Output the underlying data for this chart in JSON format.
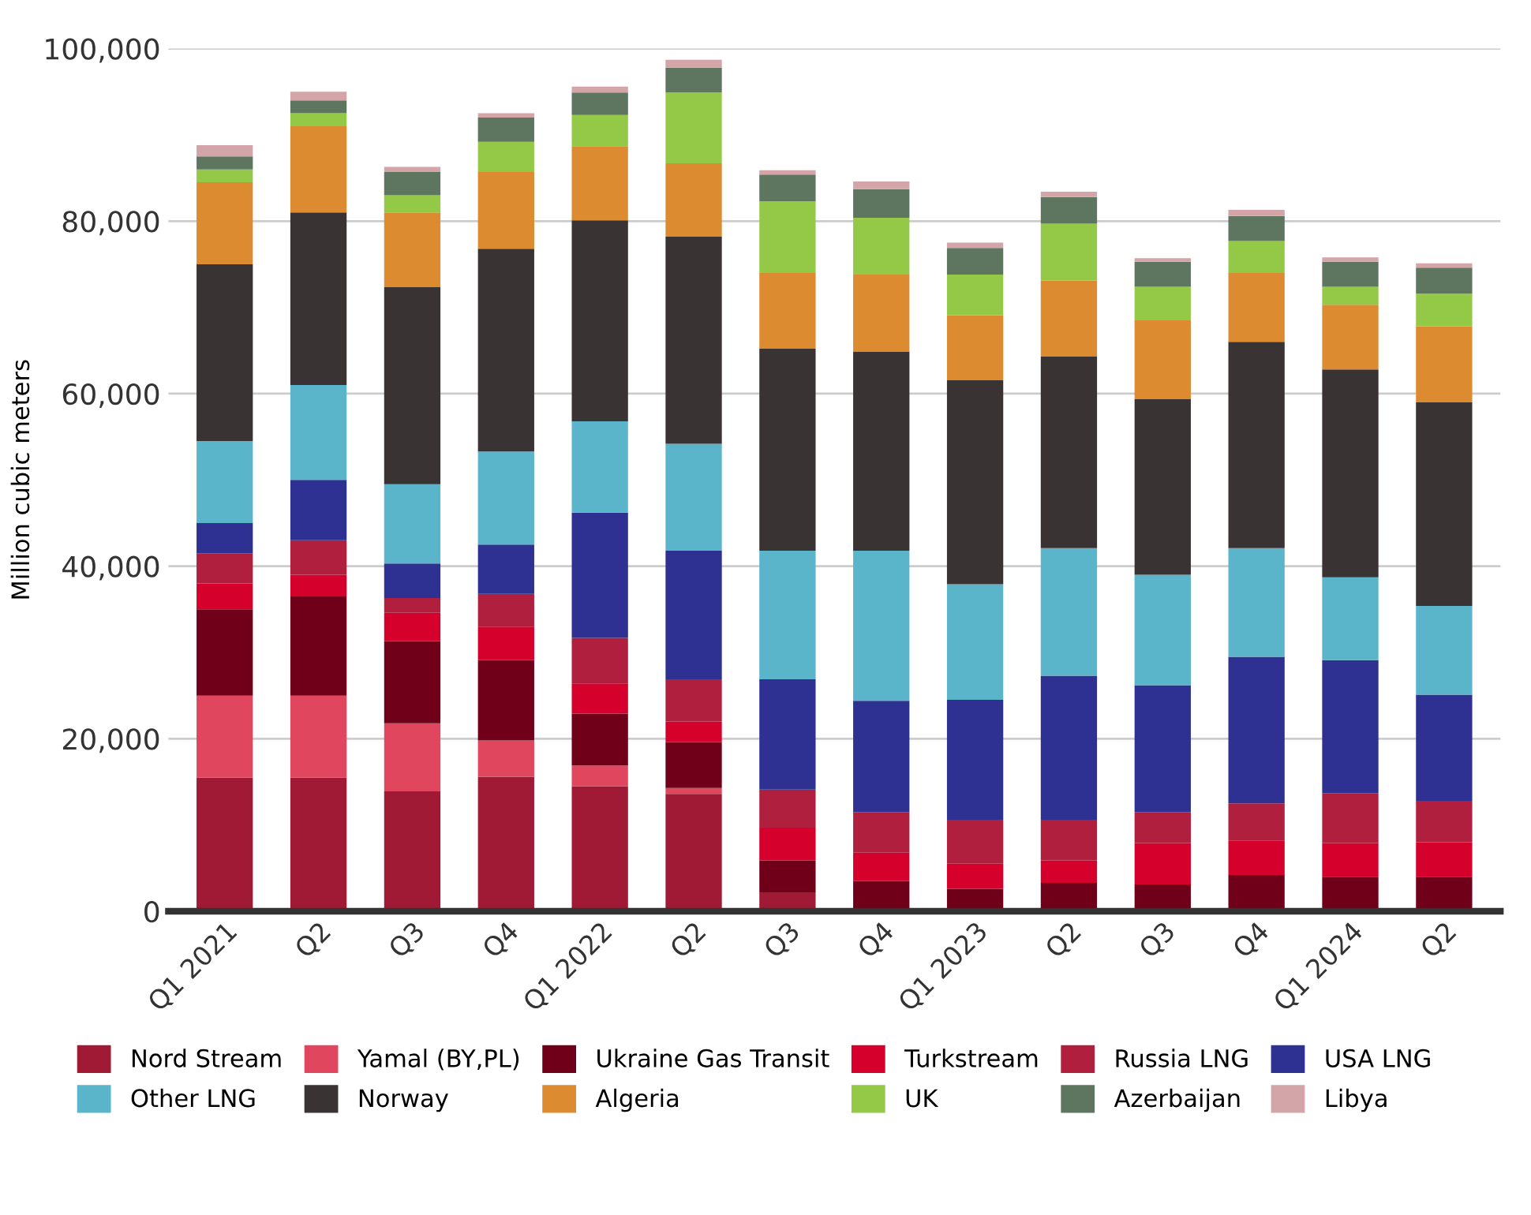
{
  "chart_data": {
    "type": "bar",
    "stacked": true,
    "ylabel": "Million cubic meters",
    "categories": [
      "Q1 2021",
      "Q2",
      "Q3",
      "Q4",
      "Q1 2022",
      "Q2",
      "Q3",
      "Q4",
      "Q1 2023",
      "Q2",
      "Q3",
      "Q4",
      "Q1 2024",
      "Q2"
    ],
    "ylim": [
      0,
      100000
    ],
    "yticks": [
      {
        "value": 0,
        "label": "0"
      },
      {
        "value": 20000,
        "label": "20,000"
      },
      {
        "value": 40000,
        "label": "40,000"
      },
      {
        "value": 60000,
        "label": "60,000"
      },
      {
        "value": 80000,
        "label": "80,000"
      },
      {
        "value": 100000,
        "label": "100,000"
      }
    ],
    "grid": "y",
    "legend": "bottom",
    "series": [
      {
        "name": "Nord Stream",
        "color": "#a01a35",
        "values": [
          15500,
          15500,
          13900,
          15600,
          14500,
          13600,
          2200,
          0,
          0,
          0,
          0,
          0,
          0,
          0
        ]
      },
      {
        "name": "Yamal (BY,PL)",
        "color": "#e0475f",
        "values": [
          9500,
          9500,
          7900,
          4200,
          2400,
          700,
          0,
          0,
          0,
          0,
          0,
          0,
          0,
          0
        ]
      },
      {
        "name": "Ukraine Gas Transit",
        "color": "#70001a",
        "values": [
          10000,
          11500,
          9500,
          9300,
          6000,
          5300,
          3700,
          3500,
          2600,
          3300,
          3100,
          4200,
          4000,
          4000
        ]
      },
      {
        "name": "Turkstream",
        "color": "#d5002b",
        "values": [
          3000,
          2500,
          3300,
          3900,
          3500,
          2400,
          3800,
          3300,
          2900,
          2600,
          4800,
          4000,
          3900,
          4000
        ]
      },
      {
        "name": "Russia LNG",
        "color": "#b01f3e",
        "values": [
          3500,
          4000,
          1700,
          3800,
          5300,
          4900,
          4400,
          4700,
          5100,
          4700,
          3600,
          4300,
          5800,
          4800
        ]
      },
      {
        "name": "USA LNG",
        "color": "#2e3192",
        "values": [
          3500,
          7000,
          4000,
          5700,
          14500,
          14900,
          12800,
          12900,
          13900,
          16700,
          14700,
          17000,
          15400,
          12300
        ]
      },
      {
        "name": "Other LNG",
        "color": "#5ab5cb",
        "values": [
          9500,
          11000,
          9200,
          10800,
          10600,
          12400,
          14900,
          17400,
          13400,
          14800,
          12800,
          12600,
          9600,
          10300
        ]
      },
      {
        "name": "Norway",
        "color": "#3a3334",
        "values": [
          20500,
          20000,
          22900,
          23500,
          23300,
          24000,
          23400,
          23100,
          23700,
          22200,
          20400,
          23900,
          24100,
          23600
        ]
      },
      {
        "name": "Algeria",
        "color": "#dc8b31",
        "values": [
          9500,
          10000,
          8600,
          8900,
          8600,
          8500,
          8800,
          8900,
          7500,
          8800,
          9100,
          8000,
          7500,
          8800
        ]
      },
      {
        "name": "UK",
        "color": "#94c947",
        "values": [
          1500,
          1500,
          2000,
          3500,
          3600,
          8200,
          8300,
          6600,
          4700,
          6600,
          3900,
          3700,
          2100,
          3800
        ]
      },
      {
        "name": "Azerbaijan",
        "color": "#5e7560",
        "values": [
          1500,
          1500,
          2700,
          2800,
          2600,
          2900,
          3100,
          3300,
          3100,
          3100,
          2900,
          2900,
          2900,
          3000
        ]
      },
      {
        "name": "Libya",
        "color": "#d4a5a8",
        "values": [
          1300,
          1000,
          600,
          500,
          700,
          900,
          500,
          900,
          600,
          600,
          400,
          700,
          500,
          500
        ]
      }
    ]
  }
}
